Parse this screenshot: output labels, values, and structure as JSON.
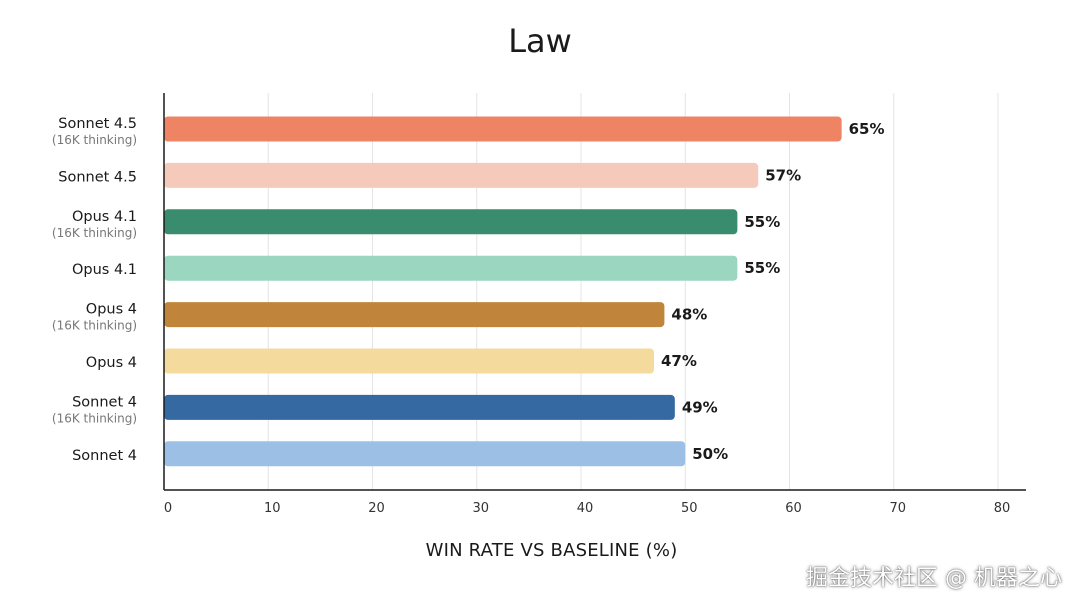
{
  "chart_data": {
    "type": "bar",
    "orientation": "horizontal",
    "title": "Law",
    "xlabel": "WIN RATE VS BASELINE (%)",
    "ylabel": "",
    "xlim": [
      0,
      80
    ],
    "xticks": [
      "0",
      "10",
      "20",
      "30",
      "40",
      "50",
      "60",
      "70",
      "80"
    ],
    "grid": true,
    "categories": [
      {
        "label": "Sonnet 4.5",
        "sublabel": "(16K thinking)"
      },
      {
        "label": "Sonnet 4.5",
        "sublabel": ""
      },
      {
        "label": "Opus 4.1",
        "sublabel": "(16K thinking)"
      },
      {
        "label": "Opus 4.1",
        "sublabel": ""
      },
      {
        "label": "Opus 4",
        "sublabel": "(16K thinking)"
      },
      {
        "label": "Opus 4",
        "sublabel": ""
      },
      {
        "label": "Sonnet 4",
        "sublabel": "(16K thinking)"
      },
      {
        "label": "Sonnet 4",
        "sublabel": ""
      }
    ],
    "values": [
      65,
      57,
      55,
      55,
      48,
      47,
      49,
      50
    ],
    "value_labels": [
      "65%",
      "57%",
      "55%",
      "55%",
      "48%",
      "47%",
      "49%",
      "50%"
    ],
    "colors": [
      "#EE8463",
      "#F6CABB",
      "#3A8C6E",
      "#9AD6C0",
      "#C0853A",
      "#F4DA9C",
      "#3469A1",
      "#9CC0E5"
    ]
  },
  "watermark": "掘金技术社区 @ 机器之心"
}
